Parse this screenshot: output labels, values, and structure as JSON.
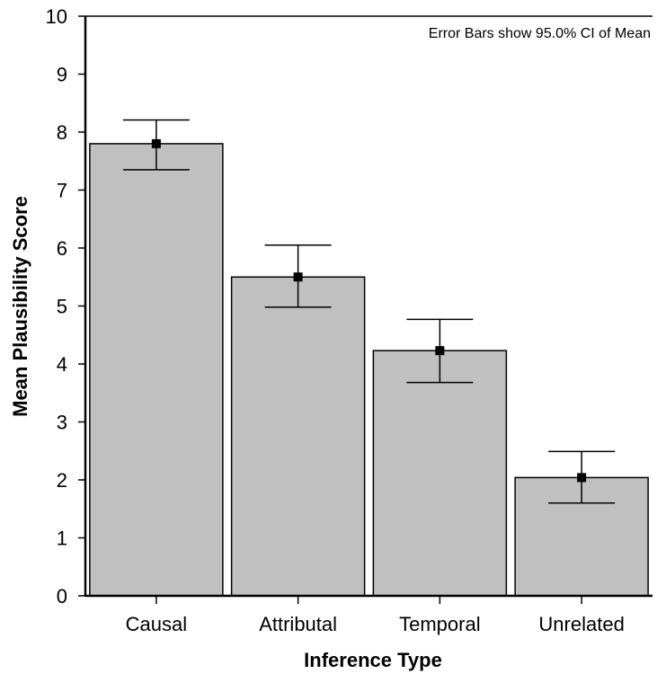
{
  "chart_data": {
    "type": "bar",
    "categories": [
      "Causal",
      "Attributal",
      "Temporal",
      "Unrelated"
    ],
    "values": [
      7.8,
      5.5,
      4.23,
      2.04
    ],
    "error_bars": {
      "upper": [
        8.21,
        6.05,
        4.77,
        2.49
      ],
      "lower": [
        7.35,
        4.98,
        3.68,
        1.6
      ]
    },
    "xlabel": "Inference Type",
    "ylabel": "Mean Plausibility Score",
    "ylim": [
      0,
      10
    ],
    "yticks": [
      "0",
      "1",
      "2",
      "3",
      "4",
      "5",
      "6",
      "7",
      "8",
      "9",
      "10"
    ],
    "annotation": "Error Bars show 95.0% CI of Mean",
    "grid": false,
    "bar_color": "#c0c0c0",
    "marker_color": "#000000"
  }
}
